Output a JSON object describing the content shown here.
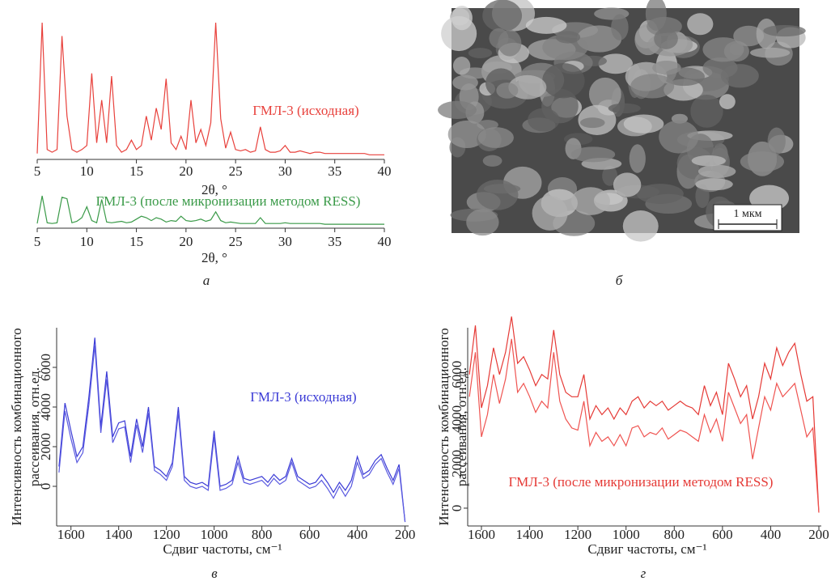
{
  "chart_data": [
    {
      "type": "line",
      "xlabel": "2θ, °",
      "xlim": [
        5,
        40
      ],
      "xticks": [
        5,
        10,
        15,
        20,
        25,
        30,
        35,
        40
      ],
      "ylim": [
        0,
        100
      ],
      "x": [
        5,
        5.5,
        6,
        6.5,
        7,
        7.5,
        8,
        8.5,
        9,
        9.5,
        10,
        10.5,
        11,
        11.5,
        12,
        12.5,
        13,
        13.5,
        14,
        14.5,
        15,
        15.5,
        16,
        16.5,
        17,
        17.5,
        18,
        18.5,
        19,
        19.5,
        20,
        20.5,
        21,
        21.5,
        22,
        22.5,
        23,
        23.5,
        24,
        24.5,
        25,
        25.5,
        26,
        26.5,
        27,
        27.5,
        28,
        28.5,
        29,
        29.5,
        30,
        30.5,
        31,
        31.5,
        32,
        32.5,
        33,
        33.5,
        34,
        34.5,
        35,
        35.5,
        36,
        36.5,
        37,
        37.5,
        38,
        38.5,
        39,
        39.5,
        40
      ],
      "series": [
        {
          "name": "ГМЛ-3 (исходная)",
          "color": "#e8413c",
          "values": [
            2,
            100,
            5,
            3,
            5,
            90,
            30,
            5,
            3,
            5,
            8,
            62,
            10,
            42,
            10,
            60,
            8,
            3,
            5,
            12,
            5,
            8,
            30,
            12,
            36,
            20,
            58,
            10,
            5,
            15,
            5,
            42,
            10,
            20,
            8,
            25,
            100,
            28,
            6,
            18,
            5,
            4,
            5,
            3,
            4,
            22,
            5,
            3,
            3,
            4,
            8,
            3,
            3,
            4,
            3,
            2,
            3,
            3,
            2,
            2,
            2,
            2,
            2,
            2,
            2,
            2,
            2,
            1,
            1,
            1,
            1
          ]
        }
      ]
    },
    {
      "type": "line",
      "xlabel": "2θ, °",
      "xlim": [
        5,
        40
      ],
      "xticks": [
        5,
        10,
        15,
        20,
        25,
        30,
        35,
        40
      ],
      "ylim": [
        0,
        100
      ],
      "x": [
        5,
        5.5,
        6,
        6.5,
        7,
        7.5,
        8,
        8.5,
        9,
        9.5,
        10,
        10.5,
        11,
        11.5,
        12,
        12.5,
        13,
        13.5,
        14,
        14.5,
        15,
        15.5,
        16,
        16.5,
        17,
        17.5,
        18,
        18.5,
        19,
        19.5,
        20,
        20.5,
        21,
        21.5,
        22,
        22.5,
        23,
        23.5,
        24,
        24.5,
        25,
        25.5,
        26,
        26.5,
        27,
        27.5,
        28,
        28.5,
        29,
        29.5,
        30,
        30.5,
        31,
        31.5,
        32,
        32.5,
        33,
        33.5,
        34,
        34.5,
        35,
        35.5,
        36,
        36.5,
        37,
        37.5,
        38,
        38.5,
        39,
        39.5,
        40
      ],
      "series": [
        {
          "name": "ГМЛ-3 (после микронизации методом RESS)",
          "color": "#3a9a48",
          "values": [
            2,
            40,
            3,
            2,
            3,
            38,
            36,
            3,
            5,
            10,
            25,
            6,
            3,
            35,
            4,
            3,
            4,
            5,
            3,
            4,
            8,
            12,
            10,
            6,
            10,
            8,
            4,
            6,
            5,
            12,
            6,
            5,
            6,
            8,
            5,
            7,
            18,
            6,
            3,
            4,
            3,
            2,
            2,
            2,
            2,
            10,
            2,
            2,
            2,
            2,
            3,
            2,
            2,
            2,
            2,
            2,
            2,
            2,
            1,
            1,
            1,
            1,
            1,
            1,
            1,
            1,
            1,
            1,
            1,
            1,
            1
          ]
        }
      ]
    },
    {
      "type": "line",
      "xlabel": "Сдвиг частоты, см⁻¹",
      "ylabel": [
        "Интенсивность комбинационного",
        "рассеивания, отн.ед."
      ],
      "xlim": [
        1660,
        185
      ],
      "xticks": [
        1600,
        1400,
        1200,
        1000,
        800,
        600,
        400,
        200
      ],
      "ylim": [
        -2000,
        8000
      ],
      "yticks": [
        0,
        2000,
        4000,
        6000
      ],
      "x": [
        1650,
        1625,
        1600,
        1575,
        1550,
        1525,
        1500,
        1475,
        1450,
        1425,
        1400,
        1375,
        1350,
        1325,
        1300,
        1275,
        1250,
        1225,
        1200,
        1175,
        1150,
        1125,
        1100,
        1075,
        1050,
        1025,
        1000,
        975,
        950,
        925,
        900,
        875,
        850,
        825,
        800,
        775,
        750,
        725,
        700,
        675,
        650,
        625,
        600,
        575,
        550,
        525,
        500,
        475,
        450,
        425,
        400,
        375,
        350,
        325,
        300,
        275,
        250,
        225,
        200
      ],
      "annotation": "ГМЛ-3 (исходная)",
      "color": "#3b3bd6",
      "series": [
        {
          "color": "#3b3bd6",
          "values": [
            1000,
            4200,
            2800,
            1500,
            2000,
            4500,
            7500,
            3000,
            5800,
            2500,
            3200,
            3300,
            1500,
            3400,
            2000,
            4000,
            1000,
            800,
            500,
            1200,
            4000,
            500,
            200,
            100,
            200,
            0,
            2800,
            0,
            100,
            300,
            1500,
            400,
            300,
            400,
            500,
            200,
            600,
            300,
            500,
            1400,
            500,
            300,
            100,
            200,
            600,
            200,
            -300,
            200,
            -200,
            300,
            1500,
            600,
            800,
            1300,
            1600,
            900,
            300,
            1100,
            -1800
          ]
        },
        {
          "color": "#5a5ae0",
          "values": [
            700,
            3800,
            2400,
            1200,
            1700,
            4100,
            7100,
            2700,
            5400,
            2200,
            2900,
            3000,
            1200,
            3100,
            1700,
            3700,
            800,
            600,
            300,
            1000,
            3700,
            300,
            0,
            -100,
            0,
            -200,
            2500,
            -200,
            -100,
            100,
            1200,
            200,
            100,
            200,
            300,
            0,
            400,
            100,
            300,
            1200,
            300,
            100,
            -100,
            0,
            300,
            -100,
            -600,
            0,
            -500,
            0,
            1200,
            400,
            600,
            1100,
            1400,
            700,
            100,
            900,
            -1800
          ]
        }
      ]
    },
    {
      "type": "line",
      "xlabel": "Сдвиг частоты, см⁻¹",
      "ylabel": [
        "Интенсивность комбинационного",
        "рассеивания, отн.ед."
      ],
      "xlim": [
        1657,
        190
      ],
      "xticks": [
        1600,
        1400,
        1200,
        1000,
        800,
        600,
        400,
        200
      ],
      "ylim": [
        -800,
        8100
      ],
      "yticks": [
        0,
        2000,
        4000,
        6000
      ],
      "x": [
        1650,
        1625,
        1600,
        1575,
        1550,
        1525,
        1500,
        1475,
        1450,
        1425,
        1400,
        1375,
        1350,
        1325,
        1300,
        1275,
        1250,
        1225,
        1200,
        1175,
        1150,
        1125,
        1100,
        1075,
        1050,
        1025,
        1000,
        975,
        950,
        925,
        900,
        875,
        850,
        825,
        800,
        775,
        750,
        725,
        700,
        675,
        650,
        625,
        600,
        575,
        550,
        525,
        500,
        475,
        450,
        425,
        400,
        375,
        350,
        325,
        300,
        275,
        250,
        225,
        200
      ],
      "annotation": "ГМЛ-3 (после микронизации методом RESS)",
      "color": "#e53935",
      "series": [
        {
          "color": "#e53935",
          "values": [
            6000,
            8200,
            4500,
            5500,
            7200,
            6000,
            7000,
            8600,
            6500,
            6800,
            6200,
            5500,
            6000,
            5800,
            8000,
            6000,
            5200,
            5000,
            5000,
            6000,
            4000,
            4600,
            4200,
            4500,
            4000,
            4500,
            4200,
            4800,
            5000,
            4500,
            4800,
            4600,
            4800,
            4400,
            4600,
            4800,
            4600,
            4500,
            4200,
            5500,
            4600,
            5200,
            4200,
            6500,
            5800,
            5000,
            5500,
            4000,
            5000,
            6500,
            5800,
            7200,
            6400,
            7000,
            7400,
            6000,
            4800,
            5000,
            -200
          ]
        },
        {
          "color": "#ef5350",
          "values": [
            5000,
            7000,
            3200,
            4200,
            6000,
            4700,
            5800,
            7600,
            5200,
            5600,
            5000,
            4300,
            4800,
            4500,
            7000,
            4800,
            4000,
            3600,
            3500,
            4800,
            2800,
            3400,
            3000,
            3200,
            2800,
            3300,
            2800,
            3600,
            3700,
            3200,
            3400,
            3300,
            3600,
            3100,
            3300,
            3500,
            3400,
            3200,
            3000,
            4200,
            3400,
            4000,
            3000,
            5200,
            4500,
            3800,
            4200,
            2200,
            3600,
            5000,
            4400,
            5600,
            5000,
            5300,
            5600,
            4400,
            3200,
            3600,
            -200
          ]
        }
      ]
    }
  ],
  "image": {
    "scale_label": "1 мкм"
  },
  "panel_letters": [
    "а",
    "б",
    "в",
    "г"
  ]
}
